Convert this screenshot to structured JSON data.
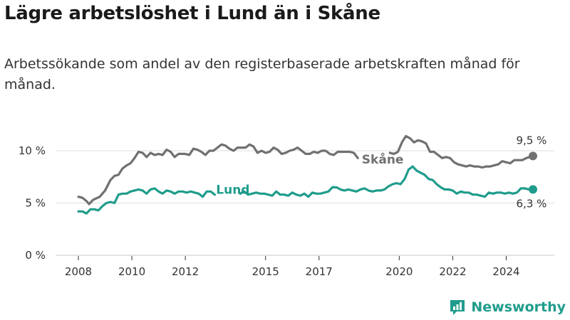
{
  "title": "Lägre arbetslöshet i Lund än i Skåne",
  "subtitle": "Arbetssökande som andel av den registerbaserade arbetskraften månad för månad.",
  "brand": {
    "name": "Newsworthy",
    "color": "#1f9c8c"
  },
  "chart_data": {
    "type": "line",
    "y_ticks": [
      {
        "value": 0,
        "label": "0 %"
      },
      {
        "value": 5,
        "label": "5 %"
      },
      {
        "value": 10,
        "label": "10 %"
      }
    ],
    "x_ticks": [
      2008,
      2010,
      2012,
      2015,
      2017,
      2020,
      2022,
      2024
    ],
    "x_range": [
      2007.1,
      2025.9
    ],
    "y_range": [
      0,
      12.2
    ],
    "grid": true,
    "series": [
      {
        "name": "Skåne",
        "color": "#707070",
        "end_label": "9,5 %",
        "points": [
          [
            2008.0,
            5.6
          ],
          [
            2008.15,
            5.5
          ],
          [
            2008.3,
            5.2
          ],
          [
            2008.4,
            4.9
          ],
          [
            2008.55,
            5.3
          ],
          [
            2008.8,
            5.6
          ],
          [
            2009.0,
            6.2
          ],
          [
            2009.2,
            7.2
          ],
          [
            2009.35,
            7.6
          ],
          [
            2009.5,
            7.7
          ],
          [
            2009.65,
            8.3
          ],
          [
            2009.8,
            8.6
          ],
          [
            2009.95,
            8.8
          ],
          [
            2010.1,
            9.3
          ],
          [
            2010.25,
            9.9
          ],
          [
            2010.4,
            9.8
          ],
          [
            2010.55,
            9.4
          ],
          [
            2010.7,
            9.8
          ],
          [
            2010.85,
            9.6
          ],
          [
            2011.0,
            9.7
          ],
          [
            2011.15,
            9.6
          ],
          [
            2011.3,
            10.1
          ],
          [
            2011.45,
            9.9
          ],
          [
            2011.6,
            9.4
          ],
          [
            2011.75,
            9.7
          ],
          [
            2011.9,
            9.7
          ],
          [
            2012.0,
            9.7
          ],
          [
            2012.15,
            9.6
          ],
          [
            2012.3,
            10.2
          ],
          [
            2012.45,
            10.1
          ],
          [
            2012.6,
            9.9
          ],
          [
            2012.75,
            9.6
          ],
          [
            2012.9,
            10.0
          ],
          [
            2013.05,
            10.0
          ],
          [
            2013.2,
            10.3
          ],
          [
            2013.35,
            10.6
          ],
          [
            2013.5,
            10.5
          ],
          [
            2013.65,
            10.2
          ],
          [
            2013.8,
            10.0
          ],
          [
            2013.95,
            10.3
          ],
          [
            2014.1,
            10.3
          ],
          [
            2014.25,
            10.3
          ],
          [
            2014.4,
            10.6
          ],
          [
            2014.55,
            10.4
          ],
          [
            2014.7,
            9.8
          ],
          [
            2014.85,
            10.0
          ],
          [
            2015.0,
            9.8
          ],
          [
            2015.15,
            9.9
          ],
          [
            2015.3,
            10.3
          ],
          [
            2015.45,
            10.1
          ],
          [
            2015.6,
            9.7
          ],
          [
            2015.75,
            9.8
          ],
          [
            2015.9,
            10.0
          ],
          [
            2016.05,
            10.1
          ],
          [
            2016.2,
            10.3
          ],
          [
            2016.35,
            10.0
          ],
          [
            2016.5,
            9.7
          ],
          [
            2016.65,
            9.7
          ],
          [
            2016.8,
            9.9
          ],
          [
            2016.95,
            9.8
          ],
          [
            2017.1,
            10.0
          ],
          [
            2017.25,
            10.0
          ],
          [
            2017.4,
            9.7
          ],
          [
            2017.55,
            9.6
          ],
          [
            2017.7,
            9.9
          ],
          [
            2017.85,
            9.9
          ],
          [
            2018.0,
            9.9
          ],
          [
            2018.15,
            9.9
          ],
          [
            2018.3,
            9.8
          ],
          [
            2018.45,
            9.3
          ]
        ],
        "points_b": [
          [
            2019.65,
            9.8
          ],
          [
            2019.8,
            9.7
          ],
          [
            2019.95,
            9.9
          ],
          [
            2020.1,
            10.8
          ],
          [
            2020.25,
            11.4
          ],
          [
            2020.4,
            11.2
          ],
          [
            2020.55,
            10.8
          ],
          [
            2020.7,
            11.0
          ],
          [
            2020.85,
            10.9
          ],
          [
            2021.0,
            10.7
          ],
          [
            2021.15,
            9.9
          ],
          [
            2021.3,
            9.9
          ],
          [
            2021.45,
            9.6
          ],
          [
            2021.6,
            9.3
          ],
          [
            2021.75,
            9.4
          ],
          [
            2021.9,
            9.3
          ],
          [
            2022.05,
            8.9
          ],
          [
            2022.2,
            8.7
          ],
          [
            2022.35,
            8.6
          ],
          [
            2022.5,
            8.5
          ],
          [
            2022.65,
            8.6
          ],
          [
            2022.8,
            8.5
          ],
          [
            2022.95,
            8.5
          ],
          [
            2023.1,
            8.4
          ],
          [
            2023.25,
            8.5
          ],
          [
            2023.4,
            8.5
          ],
          [
            2023.55,
            8.6
          ],
          [
            2023.7,
            8.7
          ],
          [
            2023.85,
            9.0
          ],
          [
            2024.0,
            8.9
          ],
          [
            2024.15,
            8.8
          ],
          [
            2024.3,
            9.1
          ],
          [
            2024.45,
            9.1
          ],
          [
            2024.6,
            9.1
          ],
          [
            2024.75,
            9.3
          ],
          [
            2025.0,
            9.5
          ]
        ],
        "label_at": [
          2018.6,
          9.2
        ]
      },
      {
        "name": "Lund",
        "color": "#1f9c8c",
        "end_label": "6,3 %",
        "points": [
          [
            2008.0,
            4.2
          ],
          [
            2008.15,
            4.2
          ],
          [
            2008.3,
            4.0
          ],
          [
            2008.45,
            4.4
          ],
          [
            2008.6,
            4.4
          ],
          [
            2008.75,
            4.3
          ],
          [
            2008.9,
            4.7
          ],
          [
            2009.05,
            5.0
          ],
          [
            2009.2,
            5.1
          ],
          [
            2009.35,
            5.0
          ],
          [
            2009.5,
            5.8
          ],
          [
            2009.65,
            5.9
          ],
          [
            2009.8,
            5.9
          ],
          [
            2009.95,
            6.1
          ],
          [
            2010.1,
            6.2
          ],
          [
            2010.25,
            6.3
          ],
          [
            2010.4,
            6.2
          ],
          [
            2010.55,
            5.9
          ],
          [
            2010.7,
            6.3
          ],
          [
            2010.85,
            6.4
          ],
          [
            2011.0,
            6.1
          ],
          [
            2011.15,
            5.9
          ],
          [
            2011.3,
            6.2
          ],
          [
            2011.45,
            6.1
          ],
          [
            2011.6,
            5.9
          ],
          [
            2011.75,
            6.1
          ],
          [
            2011.9,
            6.1
          ],
          [
            2012.05,
            6.0
          ],
          [
            2012.2,
            6.1
          ],
          [
            2012.35,
            6.0
          ],
          [
            2012.5,
            5.9
          ],
          [
            2012.65,
            5.6
          ],
          [
            2012.8,
            6.1
          ],
          [
            2012.95,
            6.1
          ],
          [
            2013.1,
            5.8
          ]
        ],
        "points_b": [
          [
            2014.05,
            5.9
          ],
          [
            2014.2,
            6.1
          ],
          [
            2014.35,
            5.8
          ],
          [
            2014.5,
            5.9
          ],
          [
            2014.65,
            6.0
          ],
          [
            2014.8,
            5.9
          ],
          [
            2014.95,
            5.9
          ],
          [
            2015.1,
            5.8
          ],
          [
            2015.25,
            5.7
          ],
          [
            2015.4,
            6.1
          ],
          [
            2015.55,
            5.8
          ],
          [
            2015.7,
            5.8
          ],
          [
            2015.85,
            5.7
          ],
          [
            2016.0,
            6.0
          ],
          [
            2016.15,
            5.8
          ],
          [
            2016.3,
            5.7
          ],
          [
            2016.45,
            5.9
          ],
          [
            2016.6,
            5.6
          ],
          [
            2016.75,
            6.0
          ],
          [
            2016.9,
            5.9
          ],
          [
            2017.05,
            5.9
          ],
          [
            2017.2,
            6.0
          ],
          [
            2017.35,
            6.1
          ],
          [
            2017.5,
            6.5
          ],
          [
            2017.65,
            6.5
          ],
          [
            2017.8,
            6.3
          ],
          [
            2017.95,
            6.2
          ],
          [
            2018.1,
            6.3
          ],
          [
            2018.25,
            6.2
          ],
          [
            2018.4,
            6.1
          ],
          [
            2018.55,
            6.3
          ],
          [
            2018.7,
            6.4
          ],
          [
            2018.85,
            6.2
          ],
          [
            2019.0,
            6.1
          ],
          [
            2019.15,
            6.2
          ],
          [
            2019.3,
            6.2
          ],
          [
            2019.45,
            6.3
          ],
          [
            2019.6,
            6.6
          ],
          [
            2019.75,
            6.8
          ],
          [
            2019.9,
            6.9
          ],
          [
            2020.05,
            6.8
          ],
          [
            2020.2,
            7.3
          ],
          [
            2020.35,
            8.2
          ],
          [
            2020.5,
            8.5
          ],
          [
            2020.65,
            8.1
          ],
          [
            2020.8,
            7.9
          ],
          [
            2020.95,
            7.7
          ],
          [
            2021.1,
            7.3
          ],
          [
            2021.25,
            7.2
          ],
          [
            2021.4,
            6.8
          ],
          [
            2021.55,
            6.5
          ],
          [
            2021.7,
            6.3
          ],
          [
            2021.85,
            6.3
          ],
          [
            2022.0,
            6.2
          ],
          [
            2022.15,
            5.9
          ],
          [
            2022.3,
            6.1
          ],
          [
            2022.45,
            6.0
          ],
          [
            2022.6,
            6.0
          ],
          [
            2022.75,
            5.8
          ],
          [
            2022.9,
            5.8
          ],
          [
            2023.05,
            5.7
          ],
          [
            2023.2,
            5.6
          ],
          [
            2023.35,
            6.0
          ],
          [
            2023.5,
            5.9
          ],
          [
            2023.65,
            6.0
          ],
          [
            2023.8,
            6.0
          ],
          [
            2023.95,
            5.9
          ],
          [
            2024.1,
            6.0
          ],
          [
            2024.25,
            5.9
          ],
          [
            2024.4,
            6.0
          ],
          [
            2024.55,
            6.4
          ],
          [
            2024.7,
            6.4
          ],
          [
            2024.85,
            6.3
          ],
          [
            2025.0,
            6.3
          ]
        ],
        "label_at": [
          2013.15,
          6.3
        ]
      }
    ]
  }
}
